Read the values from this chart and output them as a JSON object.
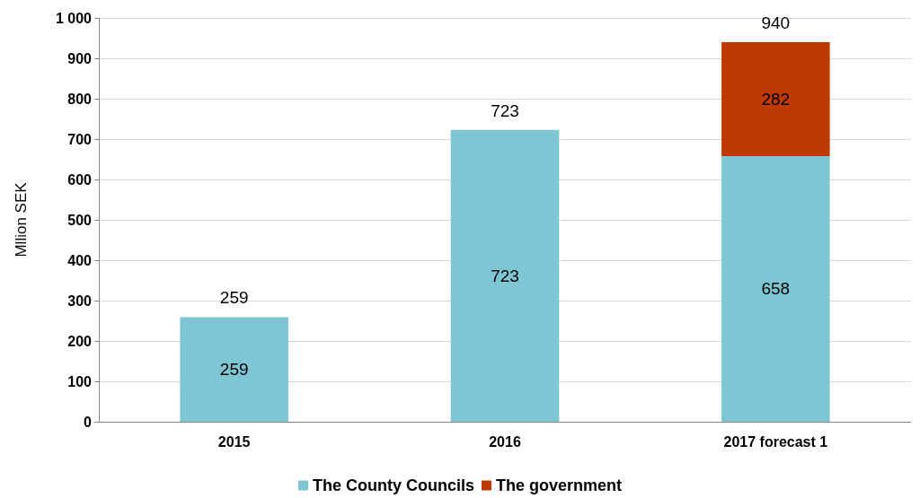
{
  "chart_data": {
    "type": "bar",
    "stacked": true,
    "ylabel": "Mllion SEK",
    "categories": [
      "2015",
      "2016",
      "2017 forecast 1"
    ],
    "series": [
      {
        "name": "The County Councils",
        "color": "#7fc6d4",
        "values": [
          259,
          723,
          658
        ]
      },
      {
        "name": "The government",
        "color": "#bf3a00",
        "values": [
          null,
          null,
          282
        ]
      }
    ],
    "data_labels": true,
    "totals": [
      "259",
      "723",
      "940"
    ],
    "ylim": [
      0,
      1000
    ],
    "yticks": [
      0,
      100,
      200,
      300,
      400,
      500,
      600,
      700,
      800,
      900,
      {
        "value": 1000,
        "label": "1 000"
      }
    ],
    "grid": "y",
    "legend": "bottom"
  }
}
